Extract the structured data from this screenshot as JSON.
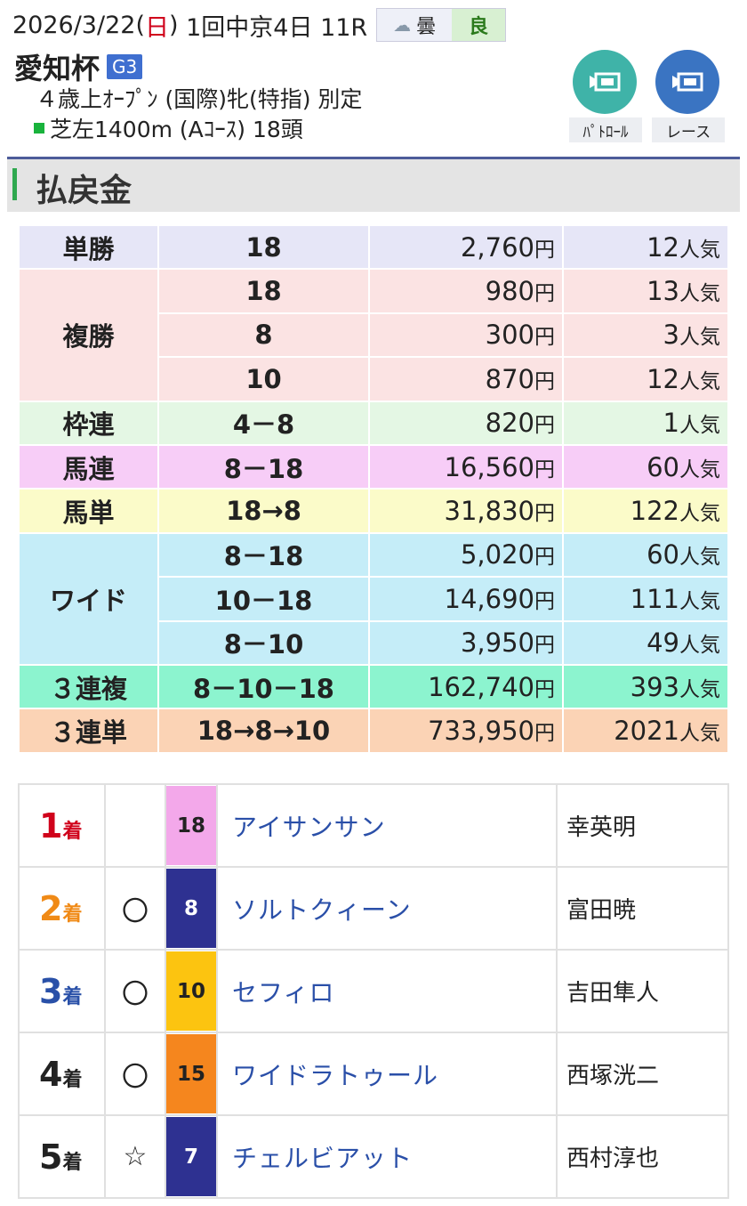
{
  "header": {
    "date_prefix": "2026/3/22(",
    "weekday": "日",
    "date_suffix": ")",
    "meeting": "1回中京4日 11R",
    "weather": "曇",
    "track_condition": "良",
    "race_name": "愛知杯",
    "grade": "G3",
    "conditions": "４歳上ｵｰﾌﾟﾝ (国際)牝(特指) 別定",
    "course": "芝左1400m (Aｺｰｽ) 18頭",
    "buttons": [
      {
        "label": "ﾊﾟﾄﾛｰﾙ",
        "color": "#3fb3a8"
      },
      {
        "label": "レース",
        "color": "#3a74c2"
      }
    ]
  },
  "section_title": "払戻金",
  "payouts": [
    {
      "bet_type": "単勝",
      "color": "#e6e6f7",
      "rows": [
        {
          "combination": "18",
          "amount": "2,760",
          "popularity": "12"
        }
      ]
    },
    {
      "bet_type": "複勝",
      "color": "#fbe3e3",
      "rows": [
        {
          "combination": "18",
          "amount": "980",
          "popularity": "13"
        },
        {
          "combination": "8",
          "amount": "300",
          "popularity": "3"
        },
        {
          "combination": "10",
          "amount": "870",
          "popularity": "12"
        }
      ]
    },
    {
      "bet_type": "枠連",
      "color": "#e4f7e4",
      "rows": [
        {
          "combination": "4－8",
          "amount": "820",
          "popularity": "1"
        }
      ]
    },
    {
      "bet_type": "馬連",
      "color": "#f7cdf7",
      "rows": [
        {
          "combination": "8－18",
          "amount": "16,560",
          "popularity": "60"
        }
      ]
    },
    {
      "bet_type": "馬単",
      "color": "#fbfbc9",
      "rows": [
        {
          "combination": "18→8",
          "amount": "31,830",
          "popularity": "122"
        }
      ]
    },
    {
      "bet_type": "ワイド",
      "color": "#c5edf8",
      "rows": [
        {
          "combination": "8－18",
          "amount": "5,020",
          "popularity": "60"
        },
        {
          "combination": "10－18",
          "amount": "14,690",
          "popularity": "111"
        },
        {
          "combination": "8－10",
          "amount": "3,950",
          "popularity": "49"
        }
      ]
    },
    {
      "bet_type": "３連複",
      "color": "#8cf4cf",
      "rows": [
        {
          "combination": "8－10－18",
          "amount": "162,740",
          "popularity": "393"
        }
      ]
    },
    {
      "bet_type": "３連単",
      "color": "#fbd3b5",
      "rows": [
        {
          "combination": "18→8→10",
          "amount": "733,950",
          "popularity": "2021"
        }
      ]
    }
  ],
  "units": {
    "yen": "円",
    "popularity": "人気",
    "place": "着"
  },
  "results": [
    {
      "rank": "1",
      "rank_color": "#d0021b",
      "mark": "",
      "number": "18",
      "number_bg": "#f3a8ea",
      "number_fg": "#222222",
      "horse": "アイサンサン",
      "jockey": "幸英明"
    },
    {
      "rank": "2",
      "rank_color": "#f08a16",
      "mark": "〇",
      "number": "8",
      "number_bg": "#2e3191",
      "number_fg": "#ffffff",
      "horse": "ソルトクィーン",
      "jockey": "富田暁"
    },
    {
      "rank": "3",
      "rank_color": "#2950a8",
      "mark": "〇",
      "number": "10",
      "number_bg": "#fcc410",
      "number_fg": "#222222",
      "horse": "セフィロ",
      "jockey": "吉田隼人"
    },
    {
      "rank": "4",
      "rank_color": "#222222",
      "mark": "〇",
      "number": "15",
      "number_bg": "#f5861e",
      "number_fg": "#222222",
      "horse": "ワイドラトゥール",
      "jockey": "西塚洸二"
    },
    {
      "rank": "5",
      "rank_color": "#222222",
      "mark": "☆",
      "number": "7",
      "number_bg": "#2e3191",
      "number_fg": "#ffffff",
      "horse": "チェルビアット",
      "jockey": "西村淳也"
    }
  ]
}
